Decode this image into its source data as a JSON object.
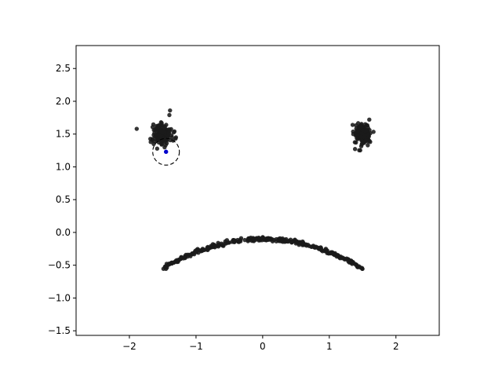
{
  "chart_data": {
    "type": "scatter",
    "title": "",
    "xlabel": "",
    "ylabel": "",
    "xlim": [
      -2.8,
      2.65
    ],
    "ylim": [
      -1.57,
      2.85
    ],
    "grid": false,
    "x_ticks": [
      -2,
      -1,
      0,
      1,
      2
    ],
    "x_tick_labels": [
      "−2",
      "−1",
      "0",
      "1",
      "2"
    ],
    "y_ticks": [
      -1.5,
      -1.0,
      -0.5,
      0.0,
      0.5,
      1.0,
      1.5,
      2.0,
      2.5
    ],
    "y_tick_labels": [
      "−1.5",
      "−1.0",
      "−0.5",
      "0.0",
      "0.5",
      "1.0",
      "1.5",
      "2.0",
      "2.5"
    ],
    "point_color": "#1a1a1a",
    "series": [
      {
        "role": "left-eye-cluster",
        "center": [
          -1.5,
          1.5
        ],
        "spread": [
          0.07,
          0.08
        ],
        "count": 150,
        "outliers": [
          [
            -1.89,
            1.58
          ],
          [
            -1.39,
            1.86
          ],
          [
            -1.4,
            1.79
          ],
          [
            -1.68,
            1.38
          ]
        ]
      },
      {
        "role": "right-eye-cluster",
        "center": [
          1.5,
          1.5
        ],
        "spread": [
          0.06,
          0.08
        ],
        "count": 130,
        "outliers": [
          [
            1.35,
            1.64
          ],
          [
            1.36,
            1.5
          ],
          [
            1.6,
            1.72
          ]
        ]
      },
      {
        "role": "mouth-arc",
        "x_range": [
          -1.5,
          1.5
        ],
        "apex": [
          0.0,
          -0.1
        ],
        "end_y": -0.55,
        "count": 320
      }
    ],
    "highlight": {
      "point": [
        -1.45,
        1.23
      ],
      "point_color": "#0000cc",
      "circle_radius": 0.2,
      "circle_style": "dashed"
    }
  }
}
